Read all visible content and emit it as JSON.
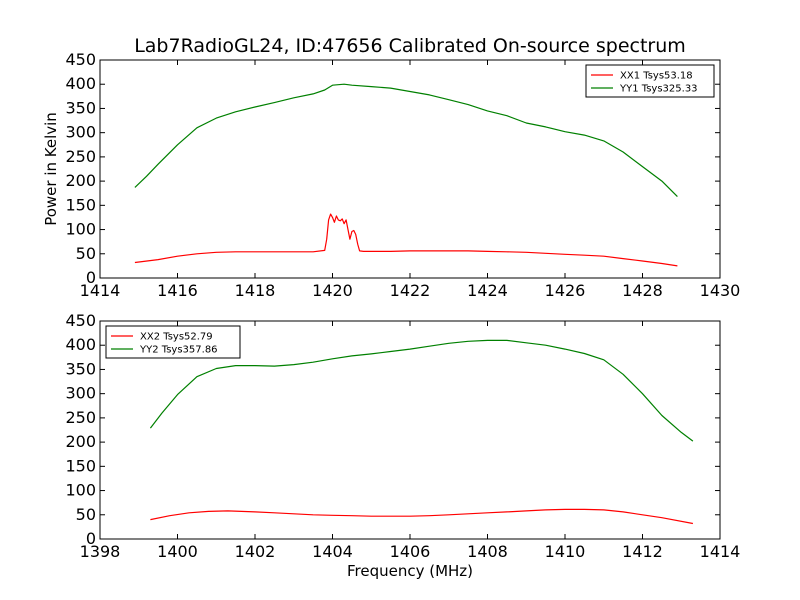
{
  "chart_data": [
    {
      "type": "line",
      "title": "Lab7RadioGL24, ID:47656 Calibrated On-source spectrum",
      "xlabel": "",
      "ylabel": "Power in Kelvin",
      "xlim": [
        1414,
        1430
      ],
      "ylim": [
        0,
        450
      ],
      "xticks": [
        1414,
        1416,
        1418,
        1420,
        1422,
        1424,
        1426,
        1428,
        1430
      ],
      "yticks": [
        0,
        50,
        100,
        150,
        200,
        250,
        300,
        350,
        400,
        450
      ],
      "grid": false,
      "legend_position": "top-right",
      "series": [
        {
          "name": "XX1 Tsys53.18",
          "color": "#ff0000",
          "x": [
            1414.9,
            1415.5,
            1416.0,
            1416.5,
            1417.0,
            1417.5,
            1418.0,
            1418.5,
            1419.0,
            1419.5,
            1419.8,
            1419.85,
            1419.9,
            1419.95,
            1420.0,
            1420.05,
            1420.1,
            1420.15,
            1420.2,
            1420.25,
            1420.3,
            1420.35,
            1420.4,
            1420.45,
            1420.5,
            1420.55,
            1420.6,
            1420.65,
            1420.7,
            1420.8,
            1421.0,
            1421.5,
            1422.0,
            1422.5,
            1423.0,
            1423.5,
            1424.0,
            1424.5,
            1425.0,
            1425.5,
            1426.0,
            1426.5,
            1427.0,
            1427.5,
            1428.0,
            1428.5,
            1428.9
          ],
          "values": [
            32,
            38,
            45,
            50,
            53,
            54,
            54,
            54,
            54,
            54,
            57,
            80,
            120,
            132,
            125,
            115,
            128,
            120,
            118,
            122,
            112,
            120,
            100,
            80,
            96,
            98,
            90,
            70,
            56,
            55,
            55,
            55,
            56,
            56,
            56,
            56,
            55,
            54,
            53,
            51,
            49,
            47,
            45,
            40,
            35,
            30,
            25
          ]
        },
        {
          "name": "YY1 Tsys325.33",
          "color": "#008000",
          "x": [
            1414.9,
            1415.2,
            1415.5,
            1416.0,
            1416.5,
            1417.0,
            1417.5,
            1418.0,
            1418.5,
            1419.0,
            1419.5,
            1419.8,
            1420.0,
            1420.3,
            1420.5,
            1421.0,
            1421.5,
            1422.0,
            1422.5,
            1423.0,
            1423.5,
            1424.0,
            1424.5,
            1425.0,
            1425.5,
            1426.0,
            1426.5,
            1427.0,
            1427.5,
            1428.0,
            1428.5,
            1428.9
          ],
          "values": [
            187,
            210,
            235,
            275,
            310,
            330,
            343,
            353,
            362,
            372,
            380,
            388,
            398,
            400,
            398,
            395,
            392,
            385,
            378,
            368,
            358,
            345,
            335,
            320,
            312,
            302,
            295,
            283,
            260,
            230,
            200,
            168
          ]
        }
      ]
    },
    {
      "type": "line",
      "title": "",
      "xlabel": "Frequency (MHz)",
      "ylabel": "",
      "xlim": [
        1398,
        1414
      ],
      "ylim": [
        0,
        450
      ],
      "xticks": [
        1398,
        1400,
        1402,
        1404,
        1406,
        1408,
        1410,
        1412,
        1414
      ],
      "yticks": [
        0,
        50,
        100,
        150,
        200,
        250,
        300,
        350,
        400,
        450
      ],
      "grid": false,
      "legend_position": "top-left",
      "series": [
        {
          "name": "XX2 Tsys52.79",
          "color": "#ff0000",
          "x": [
            1399.3,
            1399.8,
            1400.3,
            1400.8,
            1401.3,
            1402.0,
            1402.5,
            1403.0,
            1403.5,
            1404.0,
            1404.5,
            1405.0,
            1405.5,
            1406.0,
            1406.5,
            1407.0,
            1407.5,
            1408.0,
            1408.5,
            1409.0,
            1409.5,
            1410.0,
            1410.5,
            1411.0,
            1411.5,
            1412.0,
            1412.5,
            1413.3
          ],
          "values": [
            40,
            48,
            54,
            57,
            58,
            56,
            54,
            52,
            50,
            49,
            48,
            47,
            47,
            47,
            48,
            50,
            52,
            54,
            56,
            58,
            60,
            61,
            61,
            60,
            56,
            50,
            44,
            32
          ]
        },
        {
          "name": "YY2 Tsys357.86",
          "color": "#008000",
          "x": [
            1399.3,
            1399.6,
            1400.0,
            1400.5,
            1401.0,
            1401.5,
            1402.0,
            1402.5,
            1403.0,
            1403.5,
            1404.0,
            1404.5,
            1405.0,
            1405.5,
            1406.0,
            1406.5,
            1407.0,
            1407.5,
            1408.0,
            1408.5,
            1409.0,
            1409.5,
            1410.0,
            1410.5,
            1411.0,
            1411.5,
            1412.0,
            1412.5,
            1413.0,
            1413.3
          ],
          "values": [
            229,
            260,
            298,
            335,
            352,
            358,
            358,
            357,
            360,
            365,
            372,
            378,
            382,
            387,
            392,
            398,
            404,
            408,
            410,
            410,
            405,
            400,
            392,
            383,
            370,
            340,
            300,
            255,
            220,
            202
          ]
        }
      ]
    }
  ]
}
